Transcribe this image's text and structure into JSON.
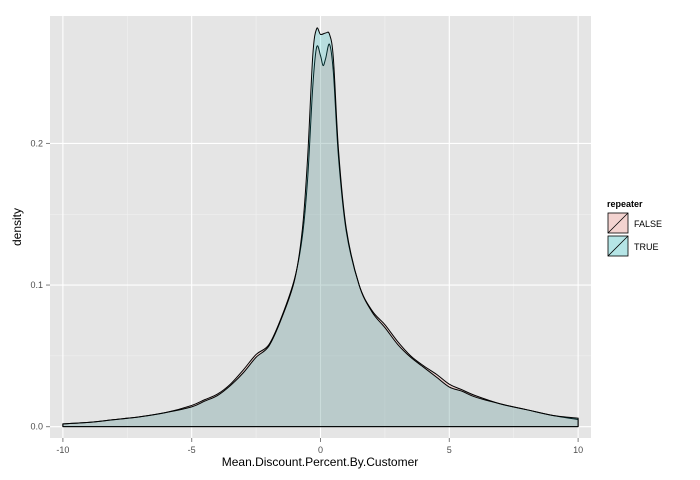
{
  "chart_data": {
    "type": "area",
    "xlabel": "Mean.Discount.Percent.By.Customer",
    "ylabel": "density",
    "xlim": [
      -10.5,
      10.5
    ],
    "ylim": [
      -0.008,
      0.29
    ],
    "x_ticks": [
      -10,
      -5,
      0,
      5,
      10
    ],
    "x_tick_labels": [
      "-10",
      "-5",
      "0",
      "5",
      "10"
    ],
    "y_ticks": [
      0,
      0.1,
      0.2
    ],
    "y_tick_labels": [
      "0.0",
      "0.1",
      "0.2"
    ],
    "grid": true,
    "legend": {
      "title": "repeater",
      "placement": "right"
    },
    "series": [
      {
        "name": "FALSE",
        "color": "#f8766d",
        "points": [
          [
            -10,
            0.002
          ],
          [
            -9,
            0.003
          ],
          [
            -8,
            0.005
          ],
          [
            -7,
            0.007
          ],
          [
            -6,
            0.01
          ],
          [
            -5,
            0.015
          ],
          [
            -4.5,
            0.019
          ],
          [
            -4,
            0.023
          ],
          [
            -3.5,
            0.03
          ],
          [
            -3,
            0.04
          ],
          [
            -2.5,
            0.051
          ],
          [
            -2,
            0.058
          ],
          [
            -1.5,
            0.078
          ],
          [
            -1,
            0.105
          ],
          [
            -0.7,
            0.135
          ],
          [
            -0.5,
            0.175
          ],
          [
            -0.3,
            0.24
          ],
          [
            -0.15,
            0.268
          ],
          [
            0,
            0.262
          ],
          [
            0.1,
            0.255
          ],
          [
            0.2,
            0.26
          ],
          [
            0.35,
            0.27
          ],
          [
            0.5,
            0.25
          ],
          [
            0.7,
            0.19
          ],
          [
            1,
            0.138
          ],
          [
            1.5,
            0.1
          ],
          [
            2,
            0.082
          ],
          [
            2.5,
            0.072
          ],
          [
            3,
            0.06
          ],
          [
            3.5,
            0.05
          ],
          [
            4,
            0.043
          ],
          [
            4.5,
            0.037
          ],
          [
            5,
            0.03
          ],
          [
            5.5,
            0.026
          ],
          [
            6,
            0.022
          ],
          [
            7,
            0.016
          ],
          [
            8,
            0.012
          ],
          [
            9,
            0.008
          ],
          [
            10,
            0.005
          ]
        ]
      },
      {
        "name": "TRUE",
        "color": "#00bfc4",
        "points": [
          [
            -10,
            0.002
          ],
          [
            -9,
            0.003
          ],
          [
            -8,
            0.005
          ],
          [
            -7,
            0.007
          ],
          [
            -6,
            0.01
          ],
          [
            -5,
            0.014
          ],
          [
            -4.5,
            0.018
          ],
          [
            -4,
            0.022
          ],
          [
            -3.5,
            0.029
          ],
          [
            -3,
            0.038
          ],
          [
            -2.5,
            0.049
          ],
          [
            -2,
            0.057
          ],
          [
            -1.5,
            0.077
          ],
          [
            -1,
            0.104
          ],
          [
            -0.7,
            0.14
          ],
          [
            -0.5,
            0.19
          ],
          [
            -0.3,
            0.262
          ],
          [
            -0.15,
            0.281
          ],
          [
            0,
            0.277
          ],
          [
            0.2,
            0.278
          ],
          [
            0.35,
            0.277
          ],
          [
            0.5,
            0.26
          ],
          [
            0.7,
            0.195
          ],
          [
            1,
            0.14
          ],
          [
            1.5,
            0.1
          ],
          [
            2,
            0.081
          ],
          [
            2.5,
            0.07
          ],
          [
            3,
            0.058
          ],
          [
            3.5,
            0.049
          ],
          [
            4,
            0.042
          ],
          [
            4.5,
            0.035
          ],
          [
            5,
            0.028
          ],
          [
            5.5,
            0.025
          ],
          [
            6,
            0.021
          ],
          [
            7,
            0.016
          ],
          [
            8,
            0.012
          ],
          [
            9,
            0.008
          ],
          [
            10,
            0.006
          ]
        ]
      }
    ]
  }
}
